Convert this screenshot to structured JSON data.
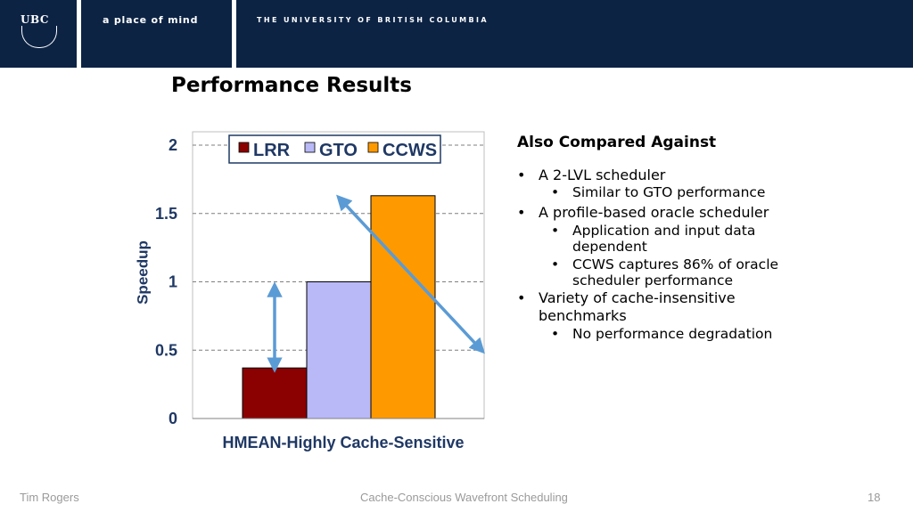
{
  "header": {
    "logo_text": "UBC",
    "tagline": "a place of mind",
    "university": "THE UNIVERSITY OF BRITISH COLUMBIA"
  },
  "slide_title": "Performance Results",
  "chart_data": {
    "type": "bar",
    "categories": [
      "HMEAN-Highly Cache-Sensitive"
    ],
    "series": [
      {
        "name": "LRR",
        "values": [
          0.37
        ],
        "color": "#8b0000"
      },
      {
        "name": "GTO",
        "values": [
          1.0
        ],
        "color": "#b9b9f7"
      },
      {
        "name": "CCWS",
        "values": [
          1.63
        ],
        "color": "#ff9900"
      }
    ],
    "title": "",
    "xlabel": "HMEAN-Highly Cache-Sensitive",
    "ylabel": "Speedup",
    "ylim": [
      0,
      2
    ],
    "yticks": [
      "0",
      "0.5",
      "1",
      "1.5",
      "2"
    ],
    "grid": true,
    "legend": "top",
    "annotations": [
      "double arrow between LRR and GTO",
      "double arrow from CCWS to right edge"
    ]
  },
  "side": {
    "title": "Also Compared Against",
    "items": [
      {
        "text": "A 2-LVL scheduler",
        "sub": [
          "Similar to GTO performance"
        ]
      },
      {
        "text": "A profile-based oracle scheduler",
        "sub": [
          "Application and input data dependent",
          "CCWS captures 86% of oracle scheduler performance"
        ]
      },
      {
        "text": "Variety of cache-insensitive benchmarks",
        "sub": [
          "No performance degradation"
        ]
      }
    ]
  },
  "footer": {
    "author": "Tim Rogers",
    "talk": "Cache-Conscious Wavefront Scheduling",
    "page": "18"
  }
}
